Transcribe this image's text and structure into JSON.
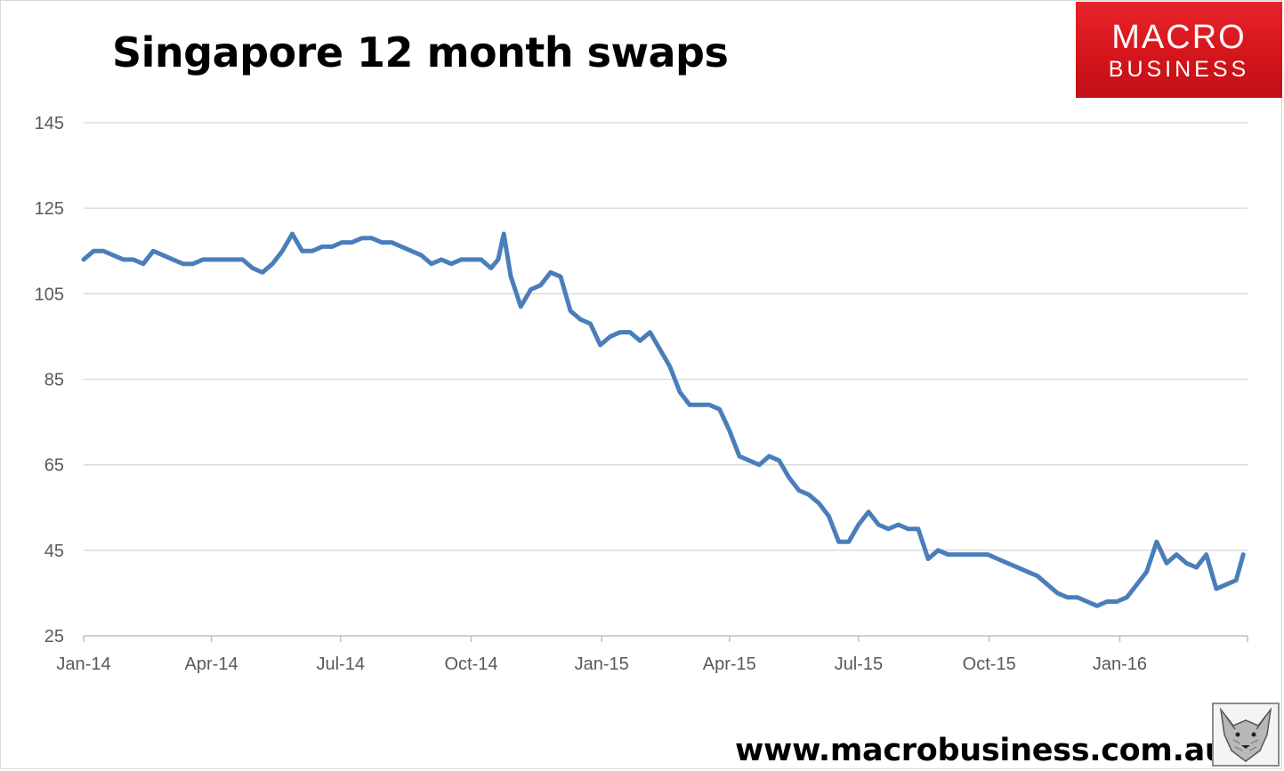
{
  "header": {
    "title": "Singapore 12 month swaps"
  },
  "logo": {
    "line1": "MACRO",
    "line2": "BUSINESS"
  },
  "footer": {
    "website": "www.macrobusiness.com.au"
  },
  "colors": {
    "series": "#4a7ebb",
    "grid": "#d9d9d9",
    "axis": "#bfbfbf",
    "logo_red": "#e8242b"
  },
  "chart_data": {
    "type": "line",
    "title": "Singapore 12 month swaps",
    "xlabel": "",
    "ylabel": "",
    "ylim": [
      25,
      145
    ],
    "y_ticks": [
      "25",
      "45",
      "65",
      "85",
      "105",
      "125",
      "145"
    ],
    "x_range": [
      "2014-01-01",
      "2016-03-31"
    ],
    "x_tick_labels": [
      "Jan-14",
      "Apr-14",
      "Jul-14",
      "Oct-14",
      "Jan-15",
      "Apr-15",
      "Jul-15",
      "Oct-15",
      "Jan-16"
    ],
    "grid": "horizontal",
    "legend": "none",
    "series": [
      {
        "x": [
          "2014-01-01",
          "2014-01-08",
          "2014-01-15",
          "2014-01-22",
          "2014-01-29",
          "2014-02-05",
          "2014-02-12",
          "2014-02-19",
          "2014-02-26",
          "2014-03-05",
          "2014-03-12",
          "2014-03-19",
          "2014-03-26",
          "2014-04-02",
          "2014-04-09",
          "2014-04-16",
          "2014-04-23",
          "2014-04-30",
          "2014-05-07",
          "2014-05-14",
          "2014-05-21",
          "2014-05-28",
          "2014-06-04",
          "2014-06-11",
          "2014-06-18",
          "2014-06-25",
          "2014-07-02",
          "2014-07-09",
          "2014-07-16",
          "2014-07-23",
          "2014-07-30",
          "2014-08-06",
          "2014-08-13",
          "2014-08-20",
          "2014-08-27",
          "2014-09-03",
          "2014-09-10",
          "2014-09-17",
          "2014-09-24",
          "2014-10-01",
          "2014-10-08",
          "2014-10-15",
          "2014-10-20",
          "2014-10-24",
          "2014-10-29",
          "2014-11-05",
          "2014-11-12",
          "2014-11-19",
          "2014-11-26",
          "2014-12-03",
          "2014-12-10",
          "2014-12-17",
          "2014-12-24",
          "2014-12-31",
          "2015-01-07",
          "2015-01-14",
          "2015-01-21",
          "2015-01-28",
          "2015-02-04",
          "2015-02-11",
          "2015-02-18",
          "2015-02-25",
          "2015-03-04",
          "2015-03-11",
          "2015-03-18",
          "2015-03-25",
          "2015-04-01",
          "2015-04-08",
          "2015-04-15",
          "2015-04-22",
          "2015-04-29",
          "2015-05-06",
          "2015-05-13",
          "2015-05-20",
          "2015-05-27",
          "2015-06-03",
          "2015-06-10",
          "2015-06-17",
          "2015-06-24",
          "2015-07-01",
          "2015-07-08",
          "2015-07-15",
          "2015-07-22",
          "2015-07-29",
          "2015-08-05",
          "2015-08-12",
          "2015-08-19",
          "2015-08-26",
          "2015-09-02",
          "2015-09-09",
          "2015-09-16",
          "2015-09-23",
          "2015-09-30",
          "2015-10-07",
          "2015-10-14",
          "2015-10-21",
          "2015-10-28",
          "2015-11-04",
          "2015-11-11",
          "2015-11-18",
          "2015-11-25",
          "2015-12-02",
          "2015-12-09",
          "2015-12-16",
          "2015-12-23",
          "2015-12-30",
          "2016-01-06",
          "2016-01-13",
          "2016-01-20",
          "2016-01-27",
          "2016-02-03",
          "2016-02-10",
          "2016-02-17",
          "2016-02-24",
          "2016-03-02",
          "2016-03-09",
          "2016-03-16",
          "2016-03-23",
          "2016-03-28"
        ],
        "y": [
          113,
          115,
          115,
          114,
          113,
          113,
          112,
          115,
          114,
          113,
          112,
          112,
          113,
          113,
          113,
          113,
          113,
          111,
          110,
          112,
          115,
          119,
          115,
          115,
          116,
          116,
          117,
          117,
          118,
          118,
          117,
          117,
          116,
          115,
          114,
          112,
          113,
          112,
          113,
          113,
          113,
          111,
          113,
          119,
          109,
          102,
          106,
          107,
          110,
          109,
          101,
          99,
          98,
          93,
          95,
          96,
          96,
          94,
          96,
          92,
          88,
          82,
          79,
          79,
          79,
          78,
          73,
          67,
          66,
          65,
          67,
          66,
          62,
          59,
          58,
          56,
          53,
          47,
          47,
          51,
          54,
          51,
          50,
          51,
          50,
          50,
          43,
          45,
          44,
          44,
          44,
          44,
          44,
          43,
          42,
          41,
          40,
          39,
          37,
          35,
          34,
          34,
          33,
          32,
          33,
          33,
          34,
          37,
          40,
          47,
          42,
          44,
          42,
          41,
          44,
          36,
          37,
          38,
          44
        ]
      }
    ]
  }
}
